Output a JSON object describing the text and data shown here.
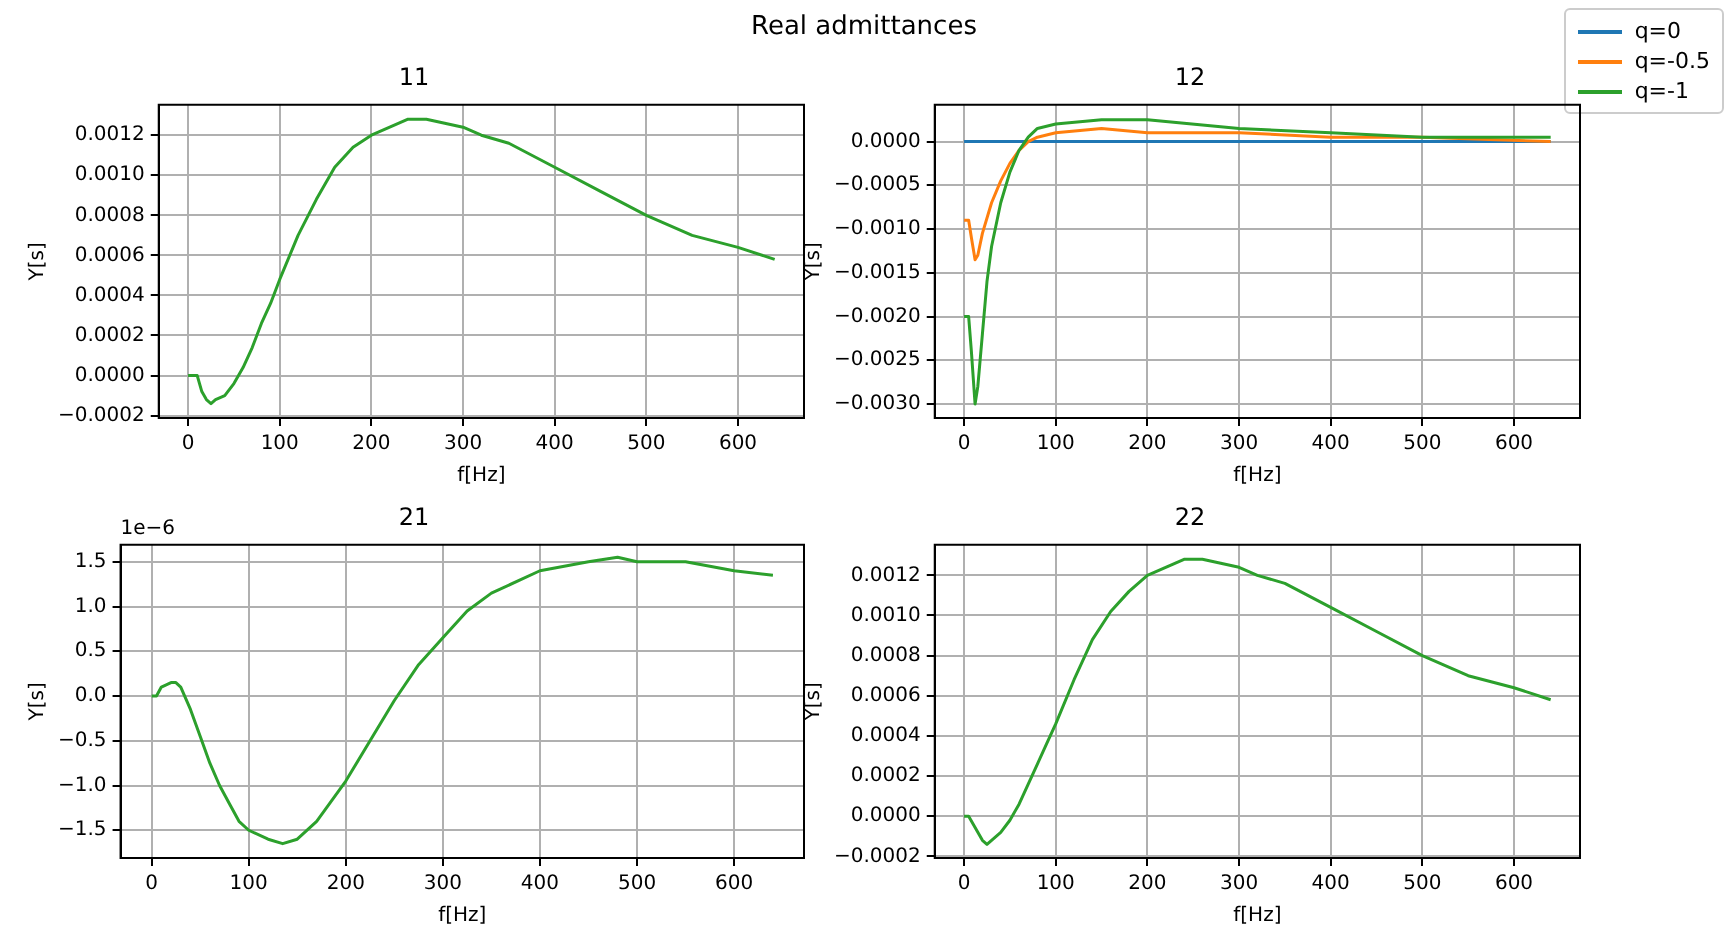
{
  "chart_data": [
    {
      "type": "line",
      "title": "11",
      "xlabel": "f[Hz]",
      "ylabel": "Y[s]",
      "annotations": [
        "Real admittances"
      ],
      "grid": true,
      "xlim": [
        -32,
        672
      ],
      "xticks": [
        0,
        100,
        200,
        300,
        400,
        500,
        600
      ],
      "ylim": [
        -0.000212,
        0.001352
      ],
      "yticks": [
        {
          "value": -0.0002,
          "label": "−0.0002"
        },
        {
          "value": 0,
          "label": "0.0000"
        },
        {
          "value": 0.0002,
          "label": "0.0002"
        },
        {
          "value": 0.0004,
          "label": "0.0004"
        },
        {
          "value": 0.0006,
          "label": "0.0006"
        },
        {
          "value": 0.0008,
          "label": "0.0008"
        },
        {
          "value": 0.001,
          "label": "0.0010"
        },
        {
          "value": 0.0012,
          "label": "0.0012"
        }
      ],
      "x": [
        0,
        10,
        15,
        20,
        25,
        30,
        40,
        50,
        60,
        70,
        80,
        90,
        100,
        120,
        140,
        160,
        180,
        200,
        220,
        240,
        260,
        280,
        300,
        320,
        350,
        400,
        450,
        500,
        550,
        600,
        640
      ],
      "series": [
        {
          "color": "#2ca02c",
          "values": [
            0,
            0,
            -8e-05,
            -0.00012,
            -0.00014,
            -0.00012,
            -0.0001,
            -4e-05,
            4e-05,
            0.00014,
            0.00026,
            0.00036,
            0.00048,
            0.0007,
            0.00088,
            0.00104,
            0.00114,
            0.0012,
            0.00124,
            0.00128,
            0.00128,
            0.00126,
            0.00124,
            0.0012,
            0.00116,
            0.00104,
            0.00092,
            0.0008,
            0.0007,
            0.00064,
            0.00058
          ]
        }
      ]
    },
    {
      "type": "line",
      "title": "12",
      "xlabel": "f[Hz]",
      "ylabel": "Y[s]",
      "legend": "top right",
      "grid": true,
      "xlim": [
        -32,
        672
      ],
      "xticks": [
        0,
        100,
        200,
        300,
        400,
        500,
        600
      ],
      "ylim": [
        -0.00316,
        0.00042
      ],
      "yticks": [
        {
          "value": -0.003,
          "label": "−0.0030"
        },
        {
          "value": -0.0025,
          "label": "−0.0025"
        },
        {
          "value": -0.002,
          "label": "−0.0020"
        },
        {
          "value": -0.0015,
          "label": "−0.0015"
        },
        {
          "value": -0.001,
          "label": "−0.0010"
        },
        {
          "value": -0.0005,
          "label": "−0.0005"
        },
        {
          "value": 0,
          "label": "0.0000"
        }
      ],
      "series": [
        {
          "name": "q=0",
          "color": "#1f77b4",
          "x": [
            0,
            640
          ],
          "values": [
            0,
            0
          ]
        },
        {
          "name": "q=-0.5",
          "color": "#ff7f0e",
          "x": [
            0,
            5,
            8,
            12,
            15,
            20,
            30,
            40,
            50,
            60,
            70,
            80,
            100,
            150,
            200,
            300,
            400,
            500,
            640
          ],
          "values": [
            -0.0009,
            -0.0009,
            -0.0011,
            -0.00135,
            -0.0013,
            -0.00105,
            -0.0007,
            -0.00045,
            -0.00025,
            -0.0001,
            0,
            5e-05,
            0.0001,
            0.00015,
            0.0001,
            0.0001,
            5e-05,
            5e-05,
            0
          ]
        },
        {
          "name": "q=-1",
          "color": "#2ca02c",
          "x": [
            0,
            5,
            8,
            12,
            15,
            20,
            25,
            30,
            40,
            50,
            60,
            70,
            80,
            100,
            150,
            200,
            300,
            400,
            500,
            640
          ],
          "values": [
            -0.002,
            -0.002,
            -0.0024,
            -0.003,
            -0.0028,
            -0.0022,
            -0.0016,
            -0.0012,
            -0.0007,
            -0.00035,
            -0.0001,
            5e-05,
            0.00015,
            0.0002,
            0.00025,
            0.00025,
            0.00015,
            0.0001,
            5e-05,
            5e-05
          ]
        }
      ]
    },
    {
      "type": "line",
      "title": "21",
      "xlabel": "f[Hz]",
      "ylabel": "Y[s]",
      "annotations": [
        "1e−6"
      ],
      "grid": true,
      "xlim": [
        -32,
        672
      ],
      "xticks": [
        0,
        100,
        200,
        300,
        400,
        500,
        600
      ],
      "ylim": [
        -1.81,
        1.69
      ],
      "yticks": [
        {
          "value": -1.5,
          "label": "−1.5"
        },
        {
          "value": -1,
          "label": "−1.0"
        },
        {
          "value": -0.5,
          "label": "−0.5"
        },
        {
          "value": 0,
          "label": "0.0"
        },
        {
          "value": 0.5,
          "label": "0.5"
        },
        {
          "value": 1,
          "label": "1.0"
        },
        {
          "value": 1.5,
          "label": "1.5"
        }
      ],
      "x": [
        0,
        5,
        10,
        20,
        25,
        30,
        40,
        50,
        60,
        70,
        80,
        90,
        100,
        120,
        135,
        150,
        170,
        200,
        225,
        250,
        275,
        300,
        325,
        350,
        400,
        450,
        480,
        500,
        550,
        600,
        640
      ],
      "series": [
        {
          "color": "#2ca02c",
          "values": [
            0,
            0,
            0.1,
            0.15,
            0.15,
            0.1,
            -0.15,
            -0.45,
            -0.75,
            -1.0,
            -1.2,
            -1.4,
            -1.5,
            -1.6,
            -1.65,
            -1.6,
            -1.4,
            -0.95,
            -0.5,
            -0.05,
            0.35,
            0.65,
            0.95,
            1.15,
            1.4,
            1.5,
            1.55,
            1.5,
            1.5,
            1.4,
            1.35
          ]
        }
      ]
    },
    {
      "type": "line",
      "title": "22",
      "xlabel": "f[Hz]",
      "ylabel": "Y[s]",
      "grid": true,
      "xlim": [
        -32,
        672
      ],
      "xticks": [
        0,
        100,
        200,
        300,
        400,
        500,
        600
      ],
      "ylim": [
        -0.000208,
        0.001352
      ],
      "yticks": [
        {
          "value": -0.0002,
          "label": "−0.0002"
        },
        {
          "value": 0,
          "label": "0.0000"
        },
        {
          "value": 0.0002,
          "label": "0.0002"
        },
        {
          "value": 0.0004,
          "label": "0.0004"
        },
        {
          "value": 0.0006,
          "label": "0.0006"
        },
        {
          "value": 0.0008,
          "label": "0.0008"
        },
        {
          "value": 0.001,
          "label": "0.0010"
        },
        {
          "value": 0.0012,
          "label": "0.0012"
        }
      ],
      "x": [
        0,
        5,
        10,
        15,
        20,
        25,
        30,
        40,
        50,
        60,
        70,
        80,
        90,
        100,
        120,
        140,
        160,
        180,
        200,
        220,
        240,
        260,
        280,
        300,
        320,
        350,
        400,
        450,
        500,
        550,
        600,
        640
      ],
      "series": [
        {
          "color": "#2ca02c",
          "values": [
            0,
            0,
            -4e-05,
            -8e-05,
            -0.00012,
            -0.00014,
            -0.00012,
            -8e-05,
            -2e-05,
            6e-05,
            0.00016,
            0.00026,
            0.00036,
            0.00046,
            0.00068,
            0.00088,
            0.00102,
            0.00112,
            0.0012,
            0.00124,
            0.00128,
            0.00128,
            0.00126,
            0.00124,
            0.0012,
            0.00116,
            0.00104,
            0.00092,
            0.0008,
            0.0007,
            0.00064,
            0.00058
          ]
        }
      ]
    }
  ]
}
